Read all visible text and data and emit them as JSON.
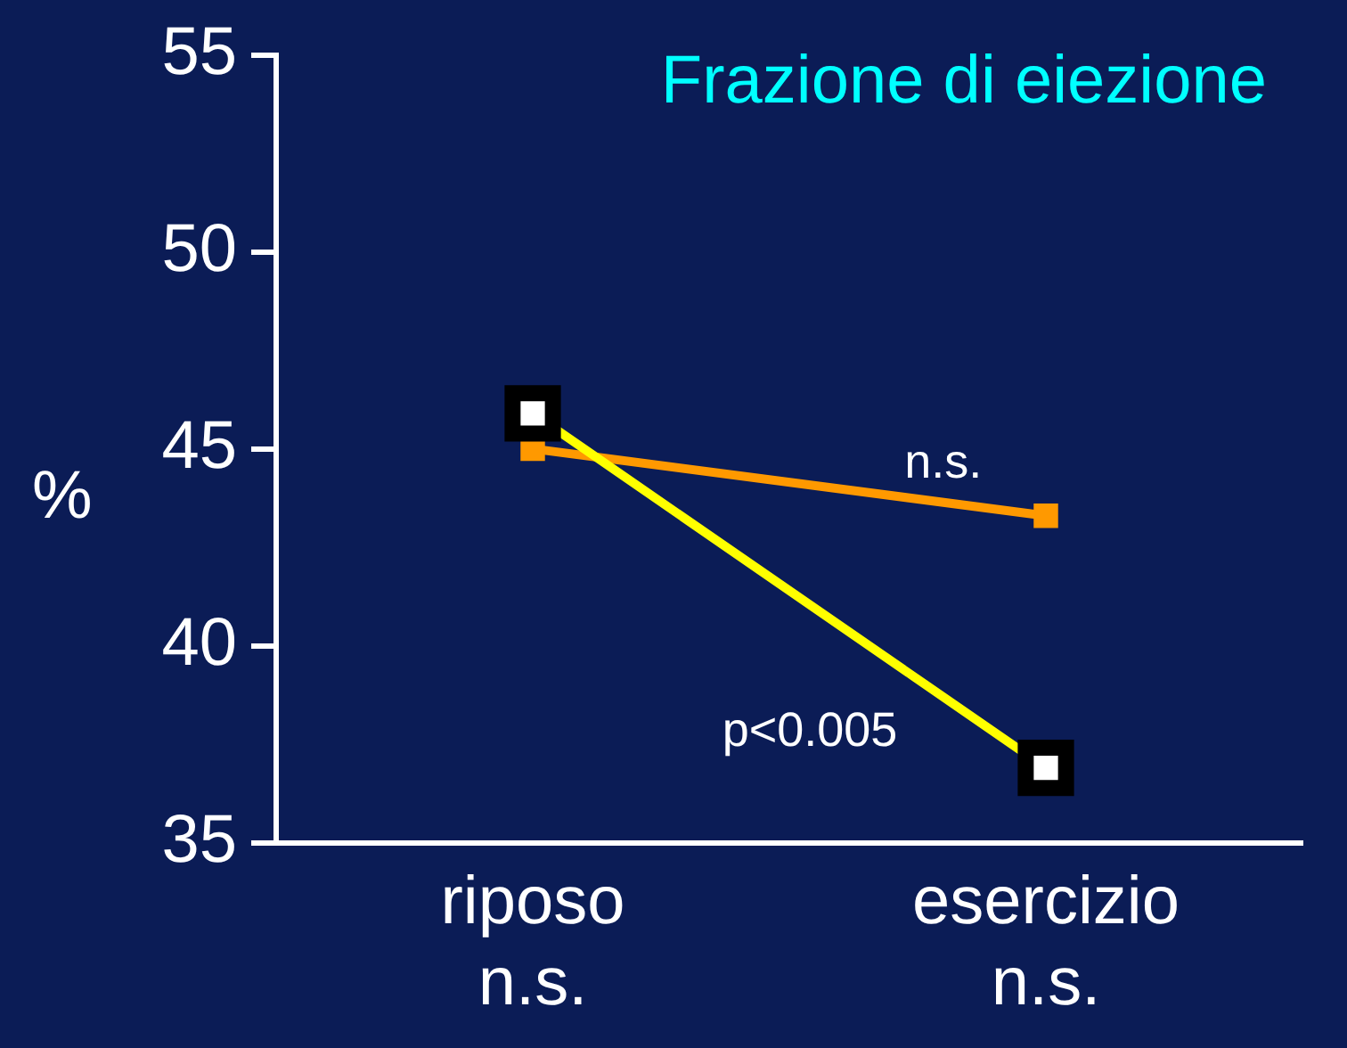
{
  "chart_data": {
    "type": "line",
    "title": "Frazione di eiezione",
    "ylabel": "%",
    "categories": [
      "riposo\nn.s.",
      "esercizio\nn.s."
    ],
    "series": [
      {
        "color": "#ffff00",
        "values": [
          45.9,
          36.9
        ]
      },
      {
        "color": "#ff9900",
        "values": [
          45.0,
          43.3
        ]
      }
    ],
    "ylim": [
      35,
      55
    ],
    "yticks": [
      35,
      40,
      45,
      50,
      55
    ],
    "grid": false,
    "legend": false,
    "marker": "square",
    "line_style": "solid",
    "annotations": [
      "n.s.",
      "p<0.005"
    ]
  }
}
